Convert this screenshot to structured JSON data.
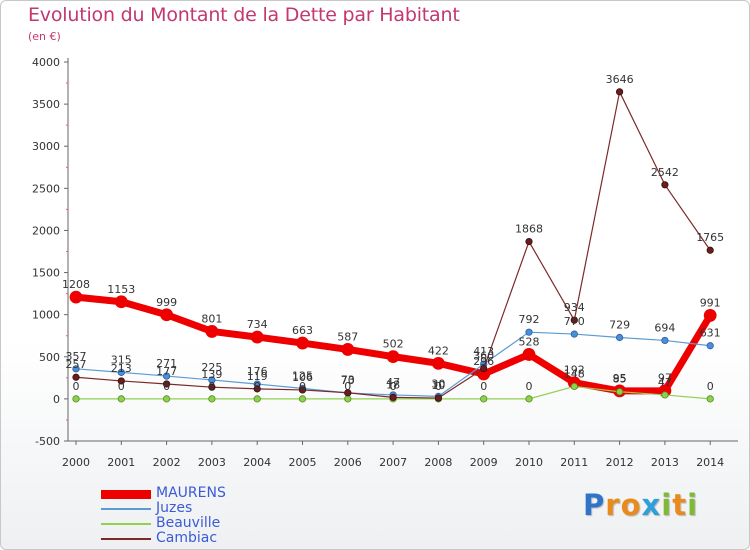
{
  "title": "Evolution du Montant de la Dette par Habitant",
  "subtitle": "(en €)",
  "logo": {
    "text": "Proxiti",
    "letters": [
      {
        "ch": "P",
        "color": "#2f74c9"
      },
      {
        "ch": "r",
        "color": "#e98a1d"
      },
      {
        "ch": "o",
        "color": "#e98a1d"
      },
      {
        "ch": "x",
        "color": "#2e9fd8"
      },
      {
        "ch": "i",
        "color": "#7fb935"
      },
      {
        "ch": "t",
        "color": "#e98a1d"
      },
      {
        "ch": "i",
        "color": "#7fb935"
      }
    ]
  },
  "chart_data": {
    "type": "line",
    "title": "Evolution du Montant de la Dette par Habitant",
    "subtitle": "(en €)",
    "xlabel": "",
    "ylabel": "",
    "ylim": [
      -500,
      4000
    ],
    "yticks": [
      -500,
      0,
      500,
      1000,
      1500,
      2000,
      2500,
      3000,
      3500,
      4000
    ],
    "grid": false,
    "legend_position": "bottom-left",
    "categories": [
      "2000",
      "2001",
      "2002",
      "2003",
      "2004",
      "2005",
      "2006",
      "2007",
      "2008",
      "2009",
      "2010",
      "2011",
      "2012",
      "2013",
      "2014"
    ],
    "series": [
      {
        "name": "MAURENS",
        "color": "#ee0000",
        "values": [
          1208,
          1153,
          999,
          801,
          734,
          663,
          587,
          502,
          422,
          296,
          528,
          192,
          95,
          97,
          991
        ],
        "labels": [
          "1208",
          "1153",
          "999",
          "801",
          "734",
          "663",
          "587",
          "502",
          "422",
          "296",
          "528",
          "192",
          "95",
          "97",
          "991"
        ]
      },
      {
        "name": "Juzes",
        "color": "#5b9bd5",
        "values": [
          357,
          315,
          271,
          225,
          176,
          125,
          70,
          47,
          30,
          413,
          792,
          770,
          729,
          694,
          631
        ],
        "labels": [
          "357",
          "315",
          "271",
          "225",
          "176",
          "125",
          "70",
          "47",
          "30",
          "413",
          "792",
          "770",
          "729",
          "694",
          "631"
        ]
      },
      {
        "name": "Beauville",
        "color": "#92d050",
        "values": [
          0,
          0,
          0,
          0,
          0,
          0,
          0,
          0,
          0,
          0,
          0,
          148,
          85,
          47,
          0
        ],
        "labels": [
          "0",
          "0",
          "0",
          "0",
          "0",
          "0",
          "0",
          "0",
          "0",
          "0",
          "0",
          "148",
          "85",
          "47",
          "0"
        ]
      },
      {
        "name": "Cambiac",
        "color": "#7b2a2a",
        "values": [
          257,
          213,
          177,
          139,
          119,
          106,
          73,
          18,
          10,
          360,
          1868,
          934,
          3646,
          2542,
          1765
        ],
        "labels": [
          "257",
          "213",
          "177",
          "139",
          "119",
          "106",
          "73",
          "18",
          "10",
          "360",
          "1868",
          "934",
          "3646",
          "2542",
          "1765"
        ]
      }
    ]
  }
}
